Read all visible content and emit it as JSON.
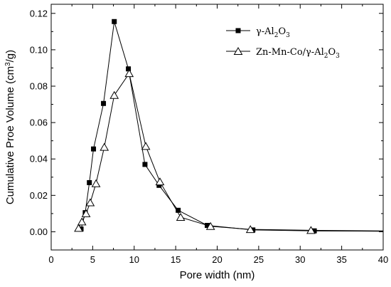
{
  "chart_data": {
    "type": "line",
    "title": "",
    "xlabel": "Pore width (nm)",
    "ylabel_main": "Cumulative Proe Volume (cm",
    "ylabel_sup": "3",
    "ylabel_tail": "/g)",
    "xlim": [
      0,
      40
    ],
    "ylim": [
      -0.01,
      0.125
    ],
    "xticks": [
      "0",
      "5",
      "10",
      "15",
      "20",
      "25",
      "30",
      "35",
      "40"
    ],
    "yticks": [
      "0.00",
      "0.02",
      "0.04",
      "0.06",
      "0.08",
      "0.10",
      "0.12"
    ],
    "grid": false,
    "legend_position": "top-right",
    "series": [
      {
        "name": "γ-Al2O3",
        "legend": {
          "prefix": "γ-Al",
          "sub1": "2",
          "mid": "O",
          "sub2": "3"
        },
        "marker": "square-filled",
        "color": "#000000",
        "x": [
          3.6,
          4.1,
          4.6,
          5.1,
          6.3,
          7.6,
          9.3,
          11.3,
          13.0,
          15.3,
          18.8,
          24.3,
          31.7,
          40.0
        ],
        "y": [
          0.0015,
          0.0105,
          0.027,
          0.0455,
          0.0705,
          0.1155,
          0.0895,
          0.037,
          0.0255,
          0.0118,
          0.0035,
          0.001,
          0.0005,
          0.0003
        ]
      },
      {
        "name": "Zn-Mn-Co/γ-Al2O3",
        "legend": {
          "prefix": "Zn-Mn-Co/γ-Al",
          "sub1": "2",
          "mid": "O",
          "sub2": "3"
        },
        "marker": "triangle-open",
        "color": "#000000",
        "x": [
          3.3,
          3.7,
          4.2,
          4.7,
          5.4,
          6.4,
          7.6,
          9.4,
          11.4,
          13.1,
          15.6,
          19.2,
          24.0,
          31.3,
          40.0
        ],
        "y": [
          0.002,
          0.0055,
          0.01,
          0.016,
          0.0265,
          0.0465,
          0.075,
          0.087,
          0.047,
          0.0275,
          0.008,
          0.003,
          0.0013,
          0.0008,
          0.0005
        ]
      }
    ]
  }
}
